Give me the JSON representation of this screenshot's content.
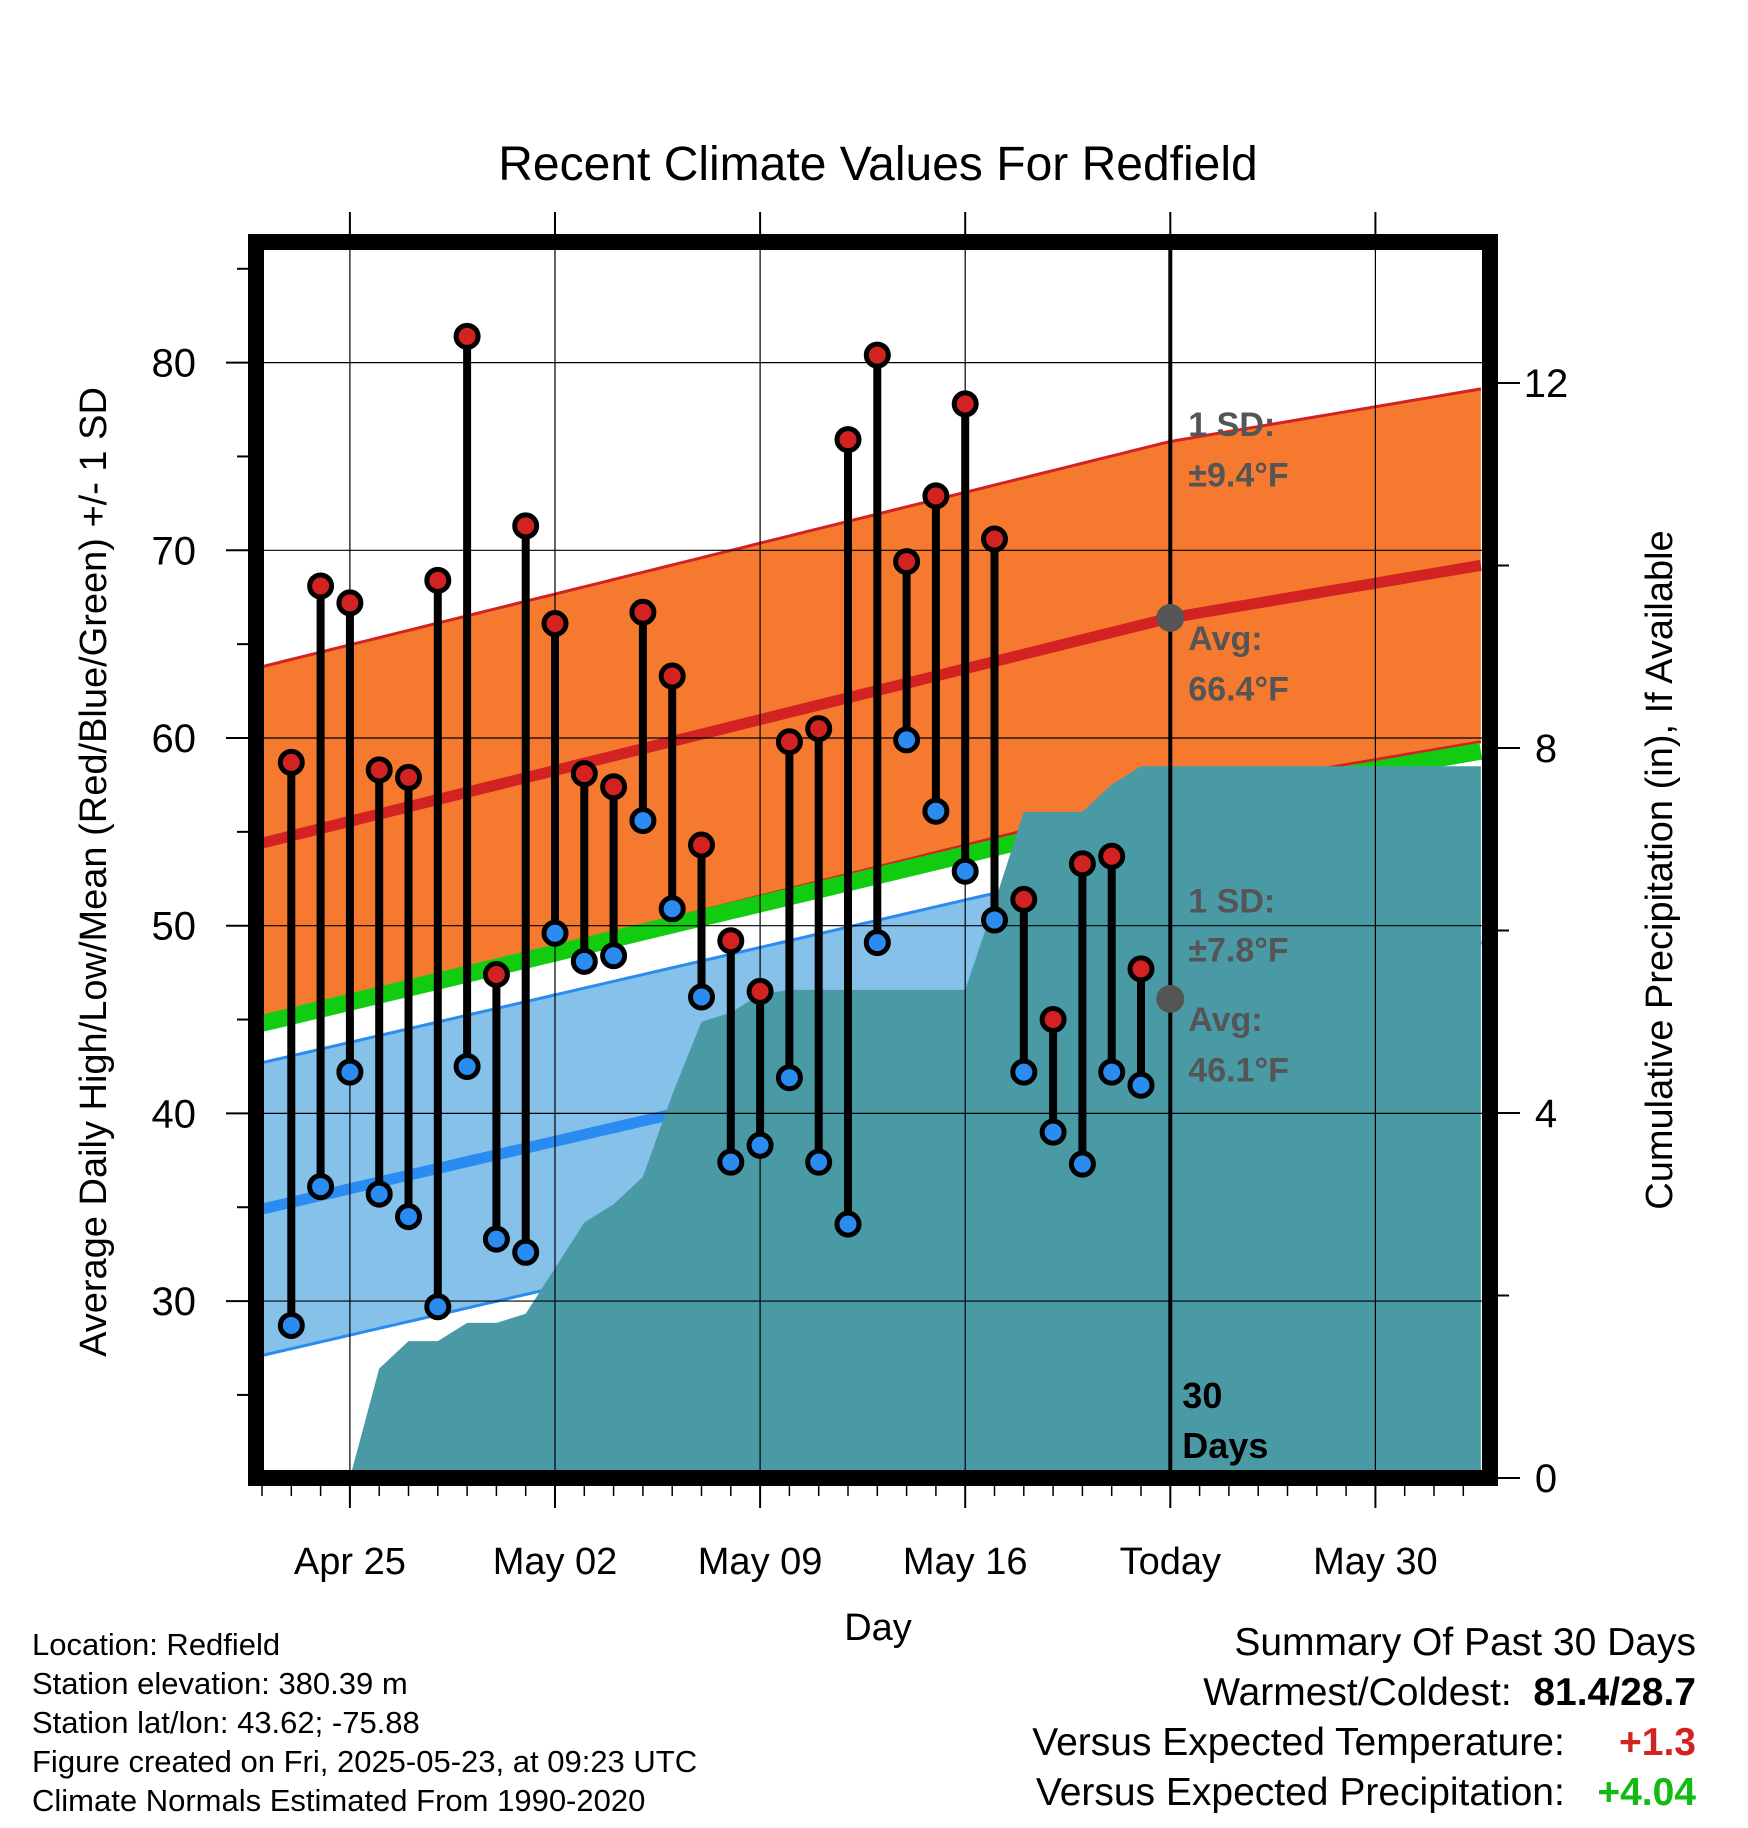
{
  "chart_data": {
    "type": "line",
    "title": "Recent Climate Values For Redfield",
    "xlabel": "Day",
    "ylabel": "Average Daily High/Low/Mean (Red/Blue/Green) +/- 1 SD",
    "y2label": "Cumulative Precipitation (in), If Available",
    "x_ticks": [
      "Apr 25",
      "May 02",
      "May 09",
      "May 16",
      "Today",
      "May 30"
    ],
    "x_tick_day": [
      3,
      10,
      17,
      24,
      31,
      38
    ],
    "xlim": [
      0,
      41.6
    ],
    "ylim": [
      21,
      86
    ],
    "y_ticks": [
      30,
      40,
      50,
      60,
      70,
      80
    ],
    "y2lim": [
      0,
      23.6
    ],
    "y2_ticks": [
      0,
      4,
      8,
      12
    ],
    "grid": true,
    "today_day": 31,
    "today_label": "30\nDays",
    "normals": {
      "high_mean": [
        [
          0,
          54.4
        ],
        [
          31,
          66.4
        ],
        [
          41.6,
          69.2
        ]
      ],
      "high_sd": 9.4,
      "low_mean": [
        [
          0,
          34.9
        ],
        [
          31,
          46.1
        ],
        [
          41.6,
          49.3
        ]
      ],
      "low_sd": 7.8,
      "mean": [
        [
          0,
          44.8
        ],
        [
          31,
          56.4
        ],
        [
          41.6,
          59.3
        ]
      ],
      "colors": {
        "high_band": "#f57a30",
        "high_line": "#d32222",
        "low_band": "#85c1e8",
        "low_line": "#2a8cf0",
        "mean_line": "#11cc11",
        "precip": "#4a9aa6"
      }
    },
    "daily": [
      {
        "day": 1,
        "high": 58.7,
        "low": 28.7
      },
      {
        "day": 2,
        "high": 68.1,
        "low": 36.1
      },
      {
        "day": 3,
        "high": 67.2,
        "low": 42.2
      },
      {
        "day": 4,
        "high": 58.3,
        "low": 35.7
      },
      {
        "day": 5,
        "high": 57.9,
        "low": 34.5
      },
      {
        "day": 6,
        "high": 68.4,
        "low": 29.7
      },
      {
        "day": 7,
        "high": 81.4,
        "low": 42.5
      },
      {
        "day": 8,
        "high": 47.4,
        "low": 33.3
      },
      {
        "day": 9,
        "high": 71.3,
        "low": 32.6
      },
      {
        "day": 10,
        "high": 66.1,
        "low": 49.6
      },
      {
        "day": 11,
        "high": 58.1,
        "low": 48.1
      },
      {
        "day": 12,
        "high": 57.4,
        "low": 48.4
      },
      {
        "day": 13,
        "high": 66.7,
        "low": 55.6
      },
      {
        "day": 14,
        "high": 63.3,
        "low": 50.9
      },
      {
        "day": 15,
        "high": 54.3,
        "low": 46.2
      },
      {
        "day": 16,
        "high": 49.2,
        "low": 37.4
      },
      {
        "day": 17,
        "high": 46.5,
        "low": 38.3
      },
      {
        "day": 18,
        "high": 59.8,
        "low": 41.9
      },
      {
        "day": 19,
        "high": 60.5,
        "low": 37.4
      },
      {
        "day": 20,
        "high": 75.9,
        "low": 34.1
      },
      {
        "day": 21,
        "high": 80.4,
        "low": 49.1
      },
      {
        "day": 22,
        "high": 69.4,
        "low": 59.9
      },
      {
        "day": 23,
        "high": 72.9,
        "low": 56.1
      },
      {
        "day": 24,
        "high": 77.8,
        "low": 52.9
      },
      {
        "day": 25,
        "high": 70.6,
        "low": 50.3
      },
      {
        "day": 26,
        "high": 51.4,
        "low": 42.2
      },
      {
        "day": 27,
        "high": 45.0,
        "low": 39.0
      },
      {
        "day": 28,
        "high": 53.3,
        "low": 37.3
      },
      {
        "day": 29,
        "high": 53.7,
        "low": 42.2
      },
      {
        "day": 30,
        "high": 47.7,
        "low": 41.5
      }
    ],
    "precip_cumulative": [
      [
        3,
        0
      ],
      [
        4,
        1.2
      ],
      [
        5,
        1.5
      ],
      [
        6,
        1.5
      ],
      [
        7,
        1.7
      ],
      [
        8,
        1.7
      ],
      [
        9,
        1.8
      ],
      [
        10,
        2.3
      ],
      [
        11,
        2.8
      ],
      [
        12,
        3.0
      ],
      [
        13,
        3.3
      ],
      [
        14,
        4.2
      ],
      [
        15,
        5.0
      ],
      [
        16,
        5.1
      ],
      [
        17,
        5.3
      ],
      [
        18,
        5.35
      ],
      [
        19,
        5.35
      ],
      [
        20,
        5.35
      ],
      [
        21,
        5.35
      ],
      [
        22,
        5.35
      ],
      [
        23,
        5.35
      ],
      [
        24,
        5.35
      ],
      [
        25,
        6.3
      ],
      [
        26,
        7.3
      ],
      [
        27,
        7.3
      ],
      [
        28,
        7.3
      ],
      [
        29,
        7.6
      ],
      [
        30,
        7.8
      ],
      [
        31,
        7.8
      ],
      [
        41.6,
        7.8
      ]
    ],
    "annotations": {
      "high_sd_label": "1 SD:",
      "high_sd_value": "±9.4°F",
      "high_avg_label": "Avg:",
      "high_avg_value": "66.4°F",
      "low_sd_label": "1 SD:",
      "low_sd_value": "±7.8°F",
      "low_avg_label": "Avg:",
      "low_avg_value": "46.1°F"
    }
  },
  "info": {
    "location": "Location: Redfield",
    "elevation": "Station elevation: 380.39 m",
    "latlon": "Station lat/lon: 43.62; -75.88",
    "created": "Figure created on Fri, 2025-05-23, at 09:23 UTC",
    "normals": "Climate Normals Estimated From 1990-2020"
  },
  "summary": {
    "title": "Summary Of Past 30 Days",
    "warm_cold_label": "Warmest/Coldest:",
    "warm_cold_value": "81.4/28.7",
    "temp_label": "Versus Expected Temperature:",
    "temp_value": "+1.3",
    "temp_color": "#d32222",
    "precip_label": "Versus Expected Precipitation:",
    "precip_value": "+4.04",
    "precip_color": "#11bb11"
  }
}
